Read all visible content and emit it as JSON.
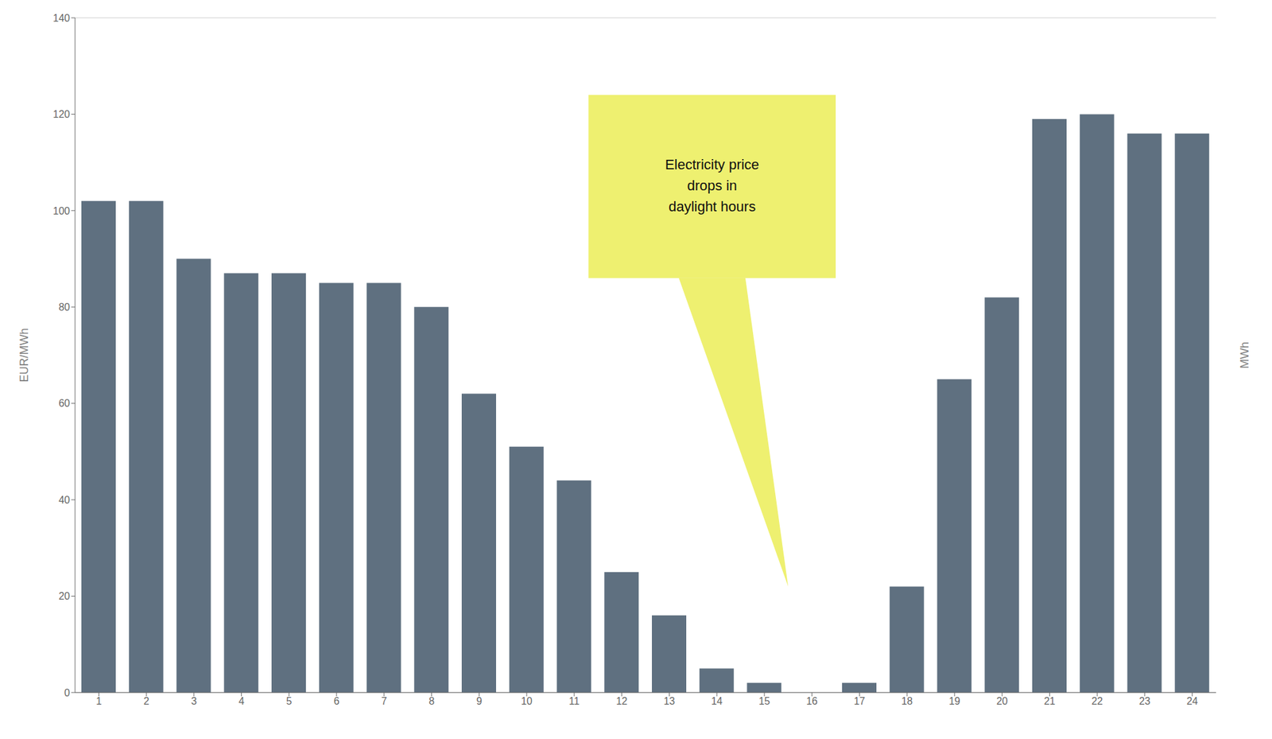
{
  "chart_data": {
    "type": "bar",
    "categories": [
      "1",
      "2",
      "3",
      "4",
      "5",
      "6",
      "7",
      "8",
      "9",
      "10",
      "11",
      "12",
      "13",
      "14",
      "15",
      "16",
      "17",
      "18",
      "19",
      "20",
      "21",
      "22",
      "23",
      "24"
    ],
    "values": [
      102,
      102,
      90,
      87,
      87,
      85,
      85,
      80,
      62,
      51,
      44,
      25,
      16,
      5,
      2,
      0,
      2,
      22,
      65,
      82,
      119,
      120,
      116,
      116
    ],
    "color": "#5f7080",
    "ylabel": "EUR/MWh",
    "y2label": "MWh",
    "ylim": [
      0,
      140
    ],
    "yticks": [
      0,
      20,
      40,
      60,
      80,
      100,
      120,
      140
    ],
    "grid": true,
    "annotation": "Electricity price\ndrops in\ndaylight hours"
  }
}
